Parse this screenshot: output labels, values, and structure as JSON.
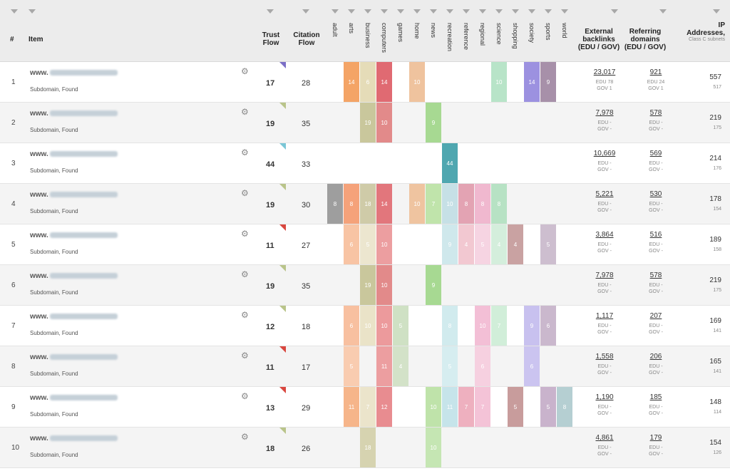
{
  "header": {
    "hash": "#",
    "item": "Item",
    "trust_flow": "Trust Flow",
    "citation_flow": "Citation Flow",
    "topics": [
      "adult",
      "arts",
      "business",
      "computers",
      "games",
      "home",
      "news",
      "recreation",
      "reference",
      "regional",
      "science",
      "shopping",
      "society",
      "sports",
      "world"
    ],
    "external_backlinks": "External backlinks (EDU / GOV)",
    "referring_domains": "Referring domains (EDU / GOV)",
    "ip_addresses": "IP Addresses,",
    "ip_sub": "Class C subnets"
  },
  "rows": [
    {
      "num": "1",
      "www": "www.",
      "sub": "Subdomain, Found",
      "tf": "17",
      "cf": "28",
      "flag": "#7b6fc6",
      "topics": [
        {
          "i": 1,
          "v": "14",
          "c": "#f4a466"
        },
        {
          "i": 2,
          "v": "6",
          "c": "#e5dcb8"
        },
        {
          "i": 3,
          "v": "14",
          "c": "#e06a72"
        },
        {
          "i": 5,
          "v": "10",
          "c": "#efc39e"
        },
        {
          "i": 10,
          "v": "10",
          "c": "#b8e4c8"
        },
        {
          "i": 12,
          "v": "14",
          "c": "#9c91e0"
        },
        {
          "i": 13,
          "v": "9",
          "c": "#a790a9"
        }
      ],
      "backlinks": "23,017",
      "bl_edu": "EDU 78",
      "bl_gov": "GOV 1",
      "refdom": "921",
      "rd_edu": "EDU 24",
      "rd_gov": "GOV 1",
      "ip": "557",
      "ip_sub": "517"
    },
    {
      "num": "2",
      "www": "www.",
      "sub": "Subdomain, Found",
      "tf": "19",
      "cf": "35",
      "flag": "#b9c48a",
      "topics": [
        {
          "i": 2,
          "v": "19",
          "c": "#c9c79c"
        },
        {
          "i": 3,
          "v": "10",
          "c": "#e28a8a"
        },
        {
          "i": 6,
          "v": "9",
          "c": "#a7d992"
        }
      ],
      "backlinks": "7,978",
      "bl_edu": "EDU -",
      "bl_gov": "GOV -",
      "refdom": "578",
      "rd_edu": "EDU -",
      "rd_gov": "GOV -",
      "ip": "219",
      "ip_sub": "175"
    },
    {
      "num": "3",
      "www": "www.",
      "sub": "Subdomain, Found",
      "tf": "44",
      "cf": "33",
      "flag": "#7ac6d6",
      "topics": [
        {
          "i": 7,
          "v": "44",
          "c": "#4fa7b0"
        }
      ],
      "backlinks": "10,669",
      "bl_edu": "EDU -",
      "bl_gov": "GOV -",
      "refdom": "569",
      "rd_edu": "EDU -",
      "rd_gov": "GOV -",
      "ip": "214",
      "ip_sub": "176"
    },
    {
      "num": "4",
      "www": "www.",
      "sub": "Subdomain, Found",
      "tf": "19",
      "cf": "30",
      "flag": "#b9c48a",
      "topics": [
        {
          "i": 0,
          "v": "8",
          "c": "#9e9e9e"
        },
        {
          "i": 1,
          "v": "8",
          "c": "#f5a27a"
        },
        {
          "i": 2,
          "v": "18",
          "c": "#cfcba8"
        },
        {
          "i": 3,
          "v": "14",
          "c": "#e2767c"
        },
        {
          "i": 5,
          "v": "10",
          "c": "#efc4a0"
        },
        {
          "i": 6,
          "v": "7",
          "c": "#c0e4ab"
        },
        {
          "i": 7,
          "v": "10",
          "c": "#c6e0e6"
        },
        {
          "i": 8,
          "v": "8",
          "c": "#e3a3b3"
        },
        {
          "i": 9,
          "v": "8",
          "c": "#f0b8cf"
        },
        {
          "i": 10,
          "v": "8",
          "c": "#b7e2c4"
        }
      ],
      "backlinks": "5,221",
      "bl_edu": "EDU -",
      "bl_gov": "GOV -",
      "refdom": "530",
      "rd_edu": "EDU -",
      "rd_gov": "GOV -",
      "ip": "178",
      "ip_sub": "154"
    },
    {
      "num": "5",
      "www": "www.",
      "sub": "Subdomain, Found",
      "tf": "11",
      "cf": "27",
      "flag": "#d9473f",
      "topics": [
        {
          "i": 1,
          "v": "6",
          "c": "#f8c4a4"
        },
        {
          "i": 2,
          "v": "5",
          "c": "#ece6cf"
        },
        {
          "i": 3,
          "v": "10",
          "c": "#ec9ea0"
        },
        {
          "i": 7,
          "v": "9",
          "c": "#cfe8ec"
        },
        {
          "i": 8,
          "v": "4",
          "c": "#f2c8d1"
        },
        {
          "i": 9,
          "v": "5",
          "c": "#f6d4e2"
        },
        {
          "i": 10,
          "v": "4",
          "c": "#d4eedc"
        },
        {
          "i": 11,
          "v": "4",
          "c": "#c9a2a2"
        },
        {
          "i": 13,
          "v": "5",
          "c": "#cdbecf"
        }
      ],
      "backlinks": "3,864",
      "bl_edu": "EDU -",
      "bl_gov": "GOV -",
      "refdom": "516",
      "rd_edu": "EDU -",
      "rd_gov": "GOV -",
      "ip": "189",
      "ip_sub": "158"
    },
    {
      "num": "6",
      "www": "www.",
      "sub": "Subdomain, Found",
      "tf": "19",
      "cf": "35",
      "flag": "#b9c48a",
      "topics": [
        {
          "i": 2,
          "v": "19",
          "c": "#c9c79c"
        },
        {
          "i": 3,
          "v": "10",
          "c": "#e28a8a"
        },
        {
          "i": 6,
          "v": "9",
          "c": "#a7d992"
        }
      ],
      "backlinks": "7,978",
      "bl_edu": "EDU -",
      "bl_gov": "GOV -",
      "refdom": "578",
      "rd_edu": "EDU -",
      "rd_gov": "GOV -",
      "ip": "219",
      "ip_sub": "175"
    },
    {
      "num": "7",
      "www": "www.",
      "sub": "Subdomain, Found",
      "tf": "12",
      "cf": "18",
      "flag": "#b9c48a",
      "topics": [
        {
          "i": 1,
          "v": "6",
          "c": "#f8c0a0"
        },
        {
          "i": 2,
          "v": "10",
          "c": "#eae3c8"
        },
        {
          "i": 3,
          "v": "10",
          "c": "#ec9a9c"
        },
        {
          "i": 4,
          "v": "5",
          "c": "#cfe1c4"
        },
        {
          "i": 7,
          "v": "8",
          "c": "#d1ebee"
        },
        {
          "i": 9,
          "v": "10",
          "c": "#f3bfd6"
        },
        {
          "i": 10,
          "v": "7",
          "c": "#d1eed9"
        },
        {
          "i": 12,
          "v": "9",
          "c": "#c8c1ef"
        },
        {
          "i": 13,
          "v": "6",
          "c": "#cab8cd"
        }
      ],
      "backlinks": "1,117",
      "bl_edu": "EDU -",
      "bl_gov": "GOV -",
      "refdom": "207",
      "rd_edu": "EDU -",
      "rd_gov": "GOV -",
      "ip": "169",
      "ip_sub": "141"
    },
    {
      "num": "8",
      "www": "www.",
      "sub": "Subdomain, Found",
      "tf": "11",
      "cf": "17",
      "flag": "#d9473f",
      "topics": [
        {
          "i": 1,
          "v": "5",
          "c": "#f9ccb0"
        },
        {
          "i": 3,
          "v": "11",
          "c": "#ec9ea0"
        },
        {
          "i": 4,
          "v": "4",
          "c": "#d3e2c8"
        },
        {
          "i": 7,
          "v": "5",
          "c": "#d6edf0"
        },
        {
          "i": 9,
          "v": "6",
          "c": "#f6d0e0"
        },
        {
          "i": 12,
          "v": "6",
          "c": "#cbc4f0"
        }
      ],
      "backlinks": "1,558",
      "bl_edu": "EDU -",
      "bl_gov": "GOV -",
      "refdom": "206",
      "rd_edu": "EDU -",
      "rd_gov": "GOV -",
      "ip": "165",
      "ip_sub": "141"
    },
    {
      "num": "9",
      "www": "www.",
      "sub": "Subdomain, Found",
      "tf": "13",
      "cf": "29",
      "flag": "#d9473f",
      "topics": [
        {
          "i": 1,
          "v": "11",
          "c": "#f6b58a"
        },
        {
          "i": 2,
          "v": "7",
          "c": "#ebe4cb"
        },
        {
          "i": 3,
          "v": "12",
          "c": "#e88c90"
        },
        {
          "i": 6,
          "v": "10",
          "c": "#bfe3aa"
        },
        {
          "i": 7,
          "v": "11",
          "c": "#c6e4ea"
        },
        {
          "i": 8,
          "v": "7",
          "c": "#eeb0bf"
        },
        {
          "i": 9,
          "v": "7",
          "c": "#f4c3d7"
        },
        {
          "i": 11,
          "v": "5",
          "c": "#c89c9c"
        },
        {
          "i": 13,
          "v": "5",
          "c": "#c9b3cc"
        },
        {
          "i": 14,
          "v": "8",
          "c": "#b5cfd2"
        }
      ],
      "backlinks": "1,190",
      "bl_edu": "EDU -",
      "bl_gov": "GOV -",
      "refdom": "185",
      "rd_edu": "EDU -",
      "rd_gov": "GOV -",
      "ip": "148",
      "ip_sub": "114"
    },
    {
      "num": "10",
      "www": "www.",
      "sub": "Subdomain, Found",
      "tf": "18",
      "cf": "26",
      "flag": "#b9c48a",
      "topics": [
        {
          "i": 2,
          "v": "18",
          "c": "#d6d3b0"
        },
        {
          "i": 6,
          "v": "10",
          "c": "#c5e6b3"
        }
      ],
      "backlinks": "4,861",
      "bl_edu": "EDU -",
      "bl_gov": "GOV -",
      "refdom": "179",
      "rd_edu": "EDU -",
      "rd_gov": "GOV -",
      "ip": "154",
      "ip_sub": "126"
    }
  ]
}
